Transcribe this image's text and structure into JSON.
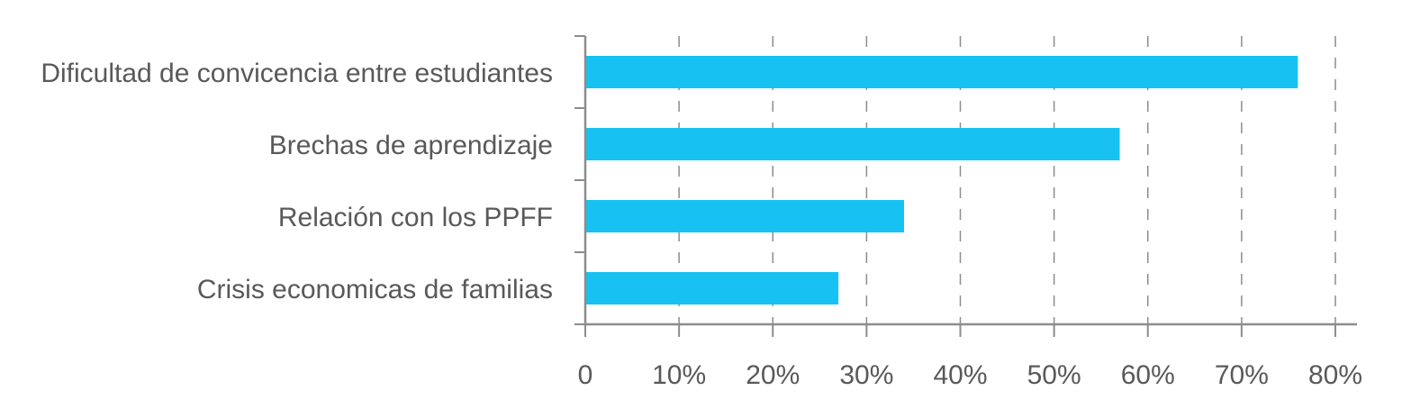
{
  "chart_data": {
    "type": "bar",
    "orientation": "horizontal",
    "categories": [
      "Dificultad de convicencia entre estudiantes",
      "Brechas de aprendizaje",
      "Relación con los PPFF",
      "Crisis economicas de familias"
    ],
    "values": [
      76,
      57,
      34,
      27
    ],
    "value_unit": "percent",
    "xlim": [
      0,
      80
    ],
    "xticks": [
      0,
      10,
      20,
      30,
      40,
      50,
      60,
      70,
      80
    ],
    "xtick_labels": [
      "0",
      "10%",
      "20%",
      "30%",
      "40%",
      "50%",
      "60%",
      "70%",
      "80%"
    ],
    "title": "",
    "xlabel": "",
    "ylabel": "",
    "grid": "vertical-dashed",
    "legend": "none",
    "colors": {
      "bar": "#17c2f2",
      "axis": "#8c8c8c",
      "grid": "#8c8c8c",
      "text": "#595959"
    }
  }
}
